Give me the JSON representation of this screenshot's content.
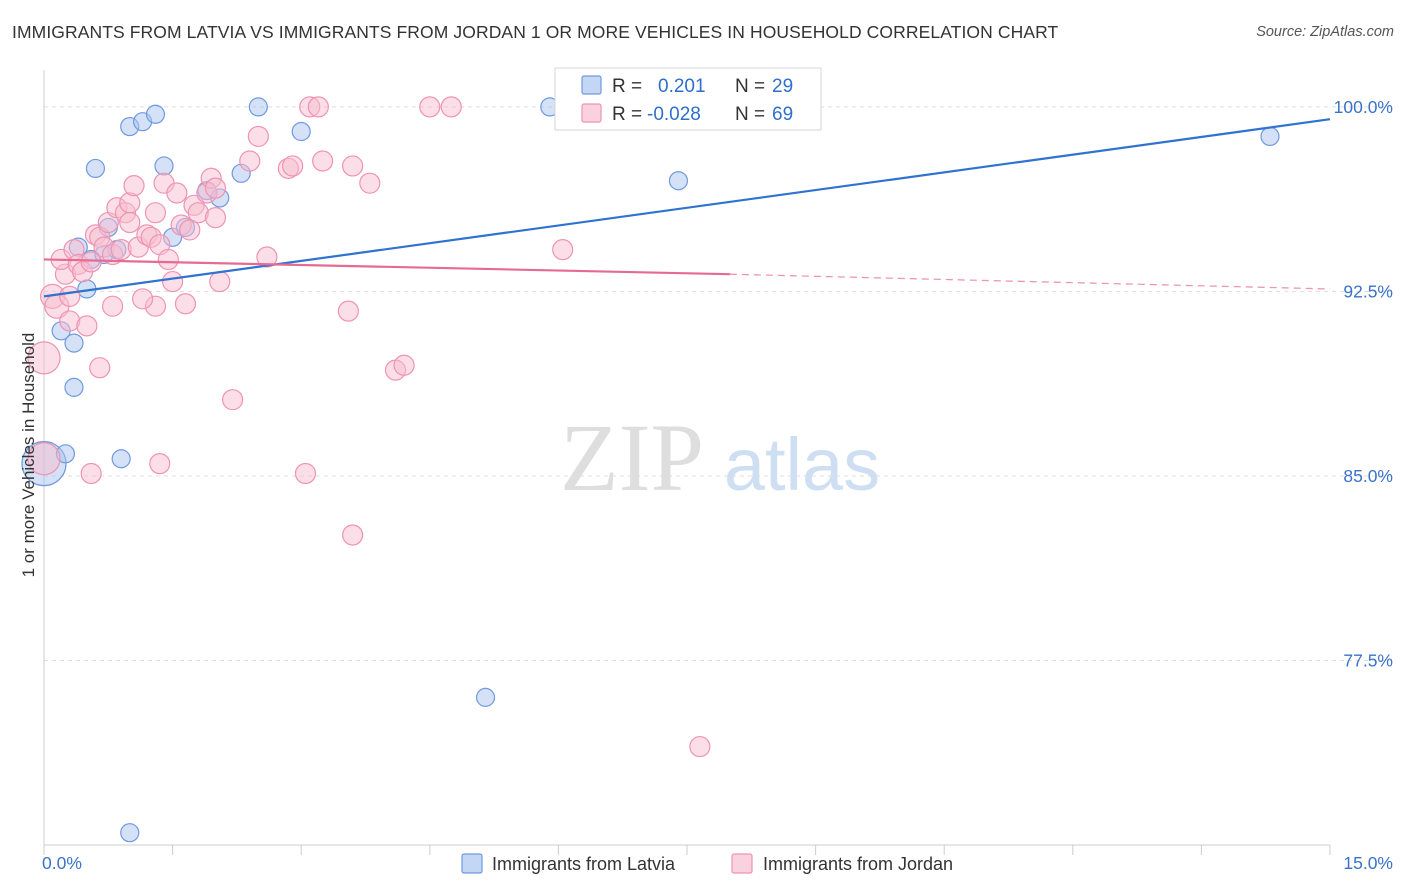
{
  "title": "IMMIGRANTS FROM LATVIA VS IMMIGRANTS FROM JORDAN 1 OR MORE VEHICLES IN HOUSEHOLD CORRELATION CHART",
  "source": "Source: ZipAtlas.com",
  "watermark": {
    "zip": "ZIP",
    "atlas": "atlas"
  },
  "colors": {
    "latvia_fill": "#aac4ee",
    "latvia_stroke": "#6f9ae0",
    "latvia_line": "#2f72d0",
    "jordan_fill": "#f8bdd0",
    "jordan_stroke": "#ef93b2",
    "jordan_line": "#e56a94",
    "tick_label": "#3a72c8",
    "grid": "#dddddd"
  },
  "legend": {
    "latvia": {
      "r_label": "R =",
      "r_value": "0.201",
      "n_label": "N =",
      "n_value": "29"
    },
    "jordan": {
      "r_label": "R =",
      "r_value": "-0.028",
      "n_label": "N =",
      "n_value": "69"
    }
  },
  "chart_data": {
    "type": "scatter",
    "title": "IMMIGRANTS FROM LATVIA VS IMMIGRANTS FROM JORDAN 1 OR MORE VEHICLES IN HOUSEHOLD CORRELATION CHART",
    "ylabel": "1 or more Vehicles in Household",
    "xlabel": "",
    "xlim": [
      0,
      15
    ],
    "ylim": [
      70.0,
      101.5
    ],
    "x_tick_labels": [
      {
        "value": 0,
        "label": "0.0%"
      },
      {
        "value": 15,
        "label": "15.0%"
      }
    ],
    "y_tick_labels": [
      {
        "value": 100,
        "label": "100.0%"
      },
      {
        "value": 92.5,
        "label": "92.5%"
      },
      {
        "value": 85,
        "label": "85.0%"
      },
      {
        "value": 77.5,
        "label": "77.5%"
      }
    ],
    "grid": true,
    "legend_position": "bottom",
    "series": [
      {
        "name": "Immigrants from Latvia",
        "color": "#aac4ee",
        "points": [
          [
            0.0,
            85.5,
            22
          ],
          [
            0.25,
            85.9,
            9
          ],
          [
            0.35,
            90.4,
            9
          ],
          [
            0.2,
            90.9,
            9
          ],
          [
            0.35,
            88.6,
            9
          ],
          [
            0.5,
            92.6,
            9
          ],
          [
            0.4,
            94.3,
            9
          ],
          [
            0.55,
            93.8,
            9
          ],
          [
            0.7,
            94.0,
            9
          ],
          [
            0.85,
            94.2,
            9
          ],
          [
            0.75,
            95.1,
            9
          ],
          [
            0.6,
            97.5,
            9
          ],
          [
            1.0,
            99.2,
            9
          ],
          [
            1.15,
            99.4,
            9
          ],
          [
            1.3,
            99.7,
            9
          ],
          [
            1.4,
            97.6,
            9
          ],
          [
            1.5,
            94.7,
            9
          ],
          [
            1.65,
            95.1,
            9
          ],
          [
            1.9,
            96.6,
            9
          ],
          [
            2.05,
            96.3,
            9
          ],
          [
            2.3,
            97.3,
            9
          ],
          [
            2.5,
            100.0,
            9
          ],
          [
            3.0,
            99.0,
            9
          ],
          [
            5.9,
            100.0,
            9
          ],
          [
            7.4,
            97.0,
            9
          ],
          [
            14.3,
            98.8,
            9
          ],
          [
            0.9,
            85.7,
            9
          ],
          [
            5.15,
            76.0,
            9
          ],
          [
            1.0,
            70.5,
            9
          ]
        ]
      },
      {
        "name": "Immigrants from Jordan",
        "color": "#f8bdd0",
        "points": [
          [
            0.0,
            85.7,
            16
          ],
          [
            0.0,
            89.8,
            16
          ],
          [
            0.1,
            92.3,
            12
          ],
          [
            0.15,
            91.9,
            12
          ],
          [
            0.25,
            93.2,
            10
          ],
          [
            0.2,
            93.8,
            10
          ],
          [
            0.3,
            91.3,
            10
          ],
          [
            0.3,
            92.3,
            10
          ],
          [
            0.35,
            94.2,
            10
          ],
          [
            0.4,
            93.6,
            10
          ],
          [
            0.45,
            93.3,
            10
          ],
          [
            0.5,
            91.1,
            10
          ],
          [
            0.55,
            93.7,
            10
          ],
          [
            0.6,
            94.8,
            10
          ],
          [
            0.65,
            94.7,
            10
          ],
          [
            0.7,
            94.3,
            10
          ],
          [
            0.75,
            95.3,
            10
          ],
          [
            0.8,
            94.0,
            10
          ],
          [
            0.85,
            95.9,
            10
          ],
          [
            0.9,
            94.2,
            10
          ],
          [
            0.95,
            95.7,
            10
          ],
          [
            1.0,
            96.1,
            10
          ],
          [
            1.0,
            95.3,
            10
          ],
          [
            1.05,
            96.8,
            10
          ],
          [
            1.1,
            94.3,
            10
          ],
          [
            1.2,
            94.8,
            10
          ],
          [
            1.25,
            94.7,
            10
          ],
          [
            1.3,
            95.7,
            10
          ],
          [
            1.35,
            94.4,
            10
          ],
          [
            1.4,
            96.9,
            10
          ],
          [
            1.45,
            93.8,
            10
          ],
          [
            1.5,
            92.9,
            10
          ],
          [
            1.55,
            96.5,
            10
          ],
          [
            1.6,
            95.2,
            10
          ],
          [
            1.7,
            95.0,
            10
          ],
          [
            1.75,
            96.0,
            10
          ],
          [
            1.8,
            95.7,
            10
          ],
          [
            1.9,
            96.5,
            10
          ],
          [
            1.95,
            97.1,
            10
          ],
          [
            2.0,
            96.7,
            10
          ],
          [
            2.0,
            95.5,
            10
          ],
          [
            2.05,
            92.9,
            10
          ],
          [
            2.2,
            88.1,
            10
          ],
          [
            2.4,
            97.8,
            10
          ],
          [
            2.5,
            98.8,
            10
          ],
          [
            2.6,
            93.9,
            10
          ],
          [
            2.85,
            97.5,
            10
          ],
          [
            2.9,
            97.6,
            10
          ],
          [
            3.1,
            100.0,
            10
          ],
          [
            3.2,
            100.0,
            10
          ],
          [
            3.25,
            97.8,
            10
          ],
          [
            3.6,
            97.6,
            10
          ],
          [
            3.55,
            91.7,
            10
          ],
          [
            3.8,
            96.9,
            10
          ],
          [
            4.1,
            89.3,
            10
          ],
          [
            4.2,
            89.5,
            10
          ],
          [
            4.5,
            100.0,
            10
          ],
          [
            4.75,
            100.0,
            10
          ],
          [
            6.05,
            94.2,
            10
          ],
          [
            0.55,
            85.1,
            10
          ],
          [
            1.35,
            85.5,
            10
          ],
          [
            3.05,
            85.1,
            10
          ],
          [
            3.6,
            82.6,
            10
          ],
          [
            7.65,
            74.0,
            10
          ],
          [
            1.65,
            92.0,
            10
          ],
          [
            1.3,
            91.9,
            10
          ],
          [
            0.65,
            89.4,
            10
          ],
          [
            0.8,
            91.9,
            10
          ],
          [
            1.15,
            92.2,
            10
          ]
        ]
      }
    ],
    "trend_lines": [
      {
        "series": "Immigrants from Latvia",
        "x": [
          0,
          15
        ],
        "y": [
          92.3,
          99.5
        ],
        "style": "solid"
      },
      {
        "series": "Immigrants from Jordan",
        "x": [
          0,
          8.0
        ],
        "y": [
          93.8,
          93.2
        ],
        "style": "solid"
      },
      {
        "series": "Immigrants from Jordan",
        "x": [
          8.0,
          15
        ],
        "y": [
          93.2,
          92.6
        ],
        "style": "dashed"
      }
    ]
  }
}
